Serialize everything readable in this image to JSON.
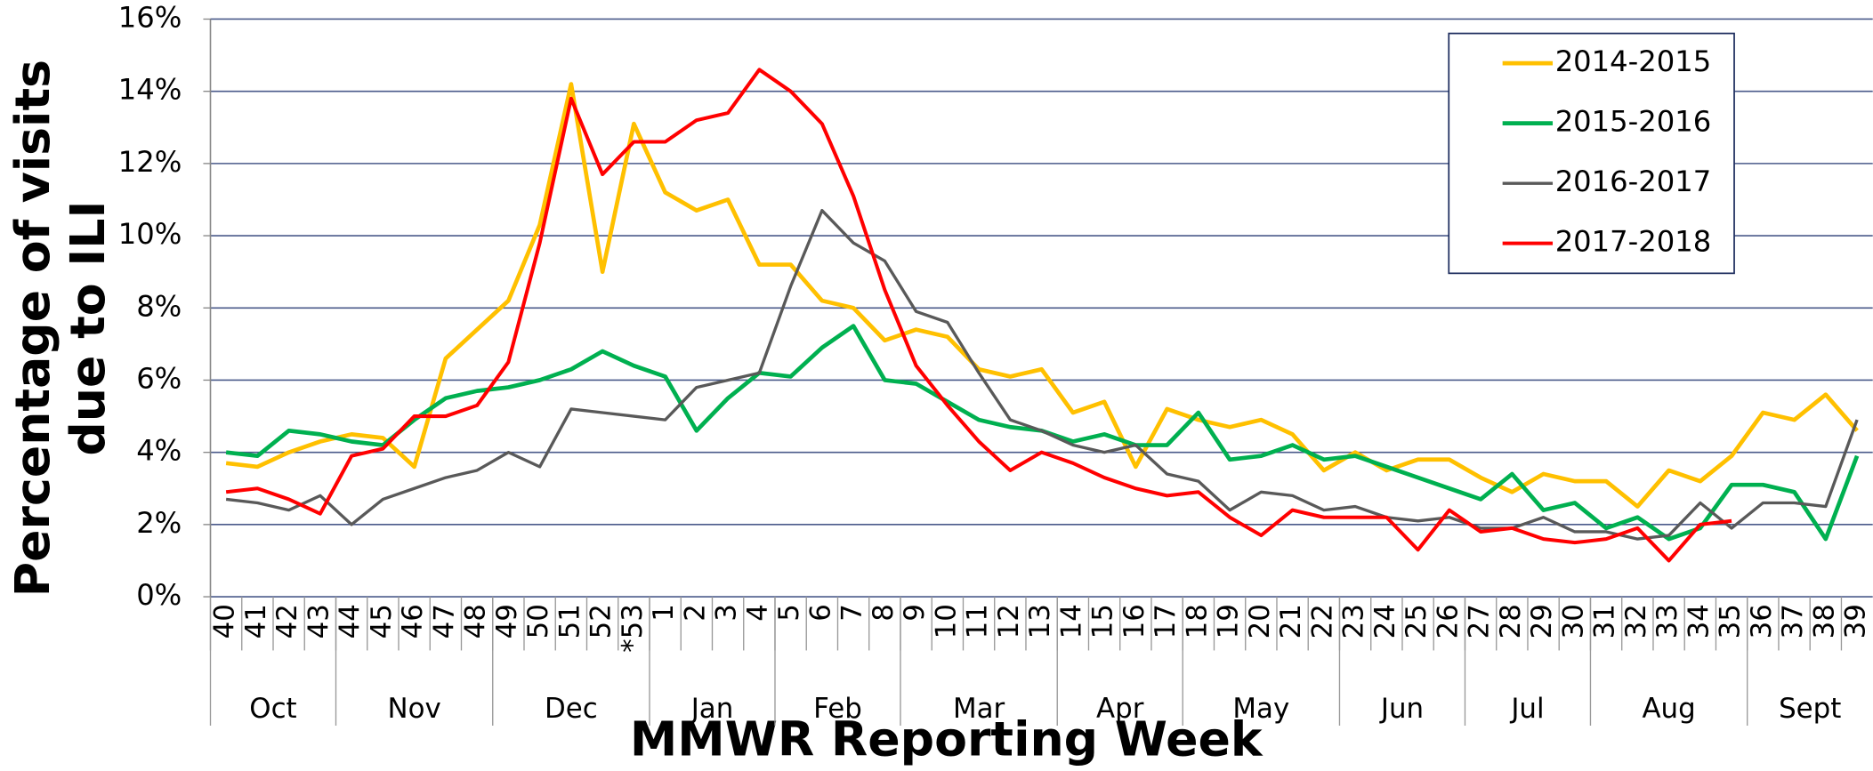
{
  "chart_data": {
    "type": "line",
    "xlabel": "MMWR Reporting Week",
    "ylabel": [
      "Percentage of visits",
      "due to ILI"
    ],
    "categories": [
      "40",
      "41",
      "42",
      "43",
      "44",
      "45",
      "46",
      "47",
      "48",
      "49",
      "50",
      "51",
      "52",
      "*53",
      "1",
      "2",
      "3",
      "4",
      "5",
      "6",
      "7",
      "8",
      "9",
      "10",
      "11",
      "12",
      "13",
      "14",
      "15",
      "16",
      "17",
      "18",
      "19",
      "20",
      "21",
      "22",
      "23",
      "24",
      "25",
      "26",
      "27",
      "28",
      "29",
      "30",
      "31",
      "32",
      "33",
      "34",
      "35",
      "36",
      "37",
      "38",
      "39"
    ],
    "category_groups": [
      {
        "label": "Oct",
        "count": 4
      },
      {
        "label": "Nov",
        "count": 5
      },
      {
        "label": "Dec",
        "count": 5
      },
      {
        "label": "Jan",
        "count": 4
      },
      {
        "label": "Feb",
        "count": 4
      },
      {
        "label": "Mar",
        "count": 5
      },
      {
        "label": "Apr",
        "count": 4
      },
      {
        "label": "May",
        "count": 5
      },
      {
        "label": "Jun",
        "count": 4
      },
      {
        "label": "Jul",
        "count": 4
      },
      {
        "label": "Aug",
        "count": 5
      },
      {
        "label": "Sept",
        "count": 4
      }
    ],
    "ylim": [
      0,
      16
    ],
    "yticks": [
      {
        "value": 0,
        "label": "0%"
      },
      {
        "value": 2,
        "label": "2%"
      },
      {
        "value": 4,
        "label": "4%"
      },
      {
        "value": 6,
        "label": "6%"
      },
      {
        "value": 8,
        "label": "8%"
      },
      {
        "value": 10,
        "label": "10%"
      },
      {
        "value": 12,
        "label": "12%"
      },
      {
        "value": 14,
        "label": "14%"
      },
      {
        "value": 16,
        "label": "16%"
      }
    ],
    "grid": true,
    "legend": "upper right",
    "series": [
      {
        "name": "2014-2015",
        "color": "#FFC000",
        "width": 3.5,
        "values": [
          3.7,
          3.6,
          4.0,
          4.3,
          4.5,
          4.4,
          3.6,
          6.6,
          7.4,
          8.2,
          10.3,
          14.2,
          9.0,
          13.1,
          11.2,
          10.7,
          11.0,
          9.2,
          9.2,
          8.2,
          8.0,
          7.1,
          7.4,
          7.2,
          6.3,
          6.1,
          6.3,
          5.1,
          5.4,
          3.6,
          5.2,
          4.9,
          4.7,
          4.9,
          4.5,
          3.5,
          4.0,
          3.5,
          3.8,
          3.8,
          3.3,
          2.9,
          3.4,
          3.2,
          3.2,
          2.5,
          3.5,
          3.2,
          3.9,
          5.1,
          4.9,
          5.6,
          4.6
        ]
      },
      {
        "name": "2015-2016",
        "color": "#00B050",
        "width": 3.5,
        "values": [
          4.0,
          3.9,
          4.6,
          4.5,
          4.3,
          4.2,
          4.9,
          5.5,
          5.7,
          5.8,
          6.0,
          6.3,
          6.8,
          6.4,
          6.1,
          4.6,
          5.5,
          6.2,
          6.1,
          6.9,
          7.5,
          6.0,
          5.9,
          5.4,
          4.9,
          4.7,
          4.6,
          4.3,
          4.5,
          4.2,
          4.2,
          5.1,
          3.8,
          3.9,
          4.2,
          3.8,
          3.9,
          3.6,
          3.3,
          3.0,
          2.7,
          3.4,
          2.4,
          2.6,
          1.9,
          2.2,
          1.6,
          1.9,
          3.1,
          3.1,
          2.9,
          1.6,
          3.9
        ]
      },
      {
        "name": "2016-2017",
        "color": "#595959",
        "width": 2.5,
        "values": [
          2.7,
          2.6,
          2.4,
          2.8,
          2.0,
          2.7,
          3.0,
          3.3,
          3.5,
          4.0,
          3.6,
          5.2,
          5.1,
          5.0,
          4.9,
          5.8,
          6.0,
          6.2,
          8.6,
          10.7,
          9.8,
          9.3,
          7.9,
          7.6,
          6.2,
          4.9,
          4.6,
          4.2,
          4.0,
          4.2,
          3.4,
          3.2,
          2.4,
          2.9,
          2.8,
          2.4,
          2.5,
          2.2,
          2.1,
          2.2,
          1.9,
          1.9,
          2.2,
          1.8,
          1.8,
          1.6,
          1.7,
          2.6,
          1.9,
          2.6,
          2.6,
          2.5,
          4.9
        ]
      },
      {
        "name": "2017-2018",
        "color": "#FF0000",
        "width": 3,
        "values": [
          2.9,
          3.0,
          2.7,
          2.3,
          3.9,
          4.1,
          5.0,
          5.0,
          5.3,
          6.5,
          9.8,
          13.8,
          11.7,
          12.6,
          12.6,
          13.2,
          13.4,
          14.6,
          14.0,
          13.1,
          11.1,
          8.5,
          6.4,
          5.3,
          4.3,
          3.5,
          4.0,
          3.7,
          3.3,
          3.0,
          2.8,
          2.9,
          2.2,
          1.7,
          2.4,
          2.2,
          2.2,
          2.2,
          1.3,
          2.4,
          1.8,
          1.9,
          1.6,
          1.5,
          1.6,
          1.9,
          1.0,
          2.0,
          2.1,
          null,
          null,
          null,
          null
        ]
      }
    ]
  }
}
